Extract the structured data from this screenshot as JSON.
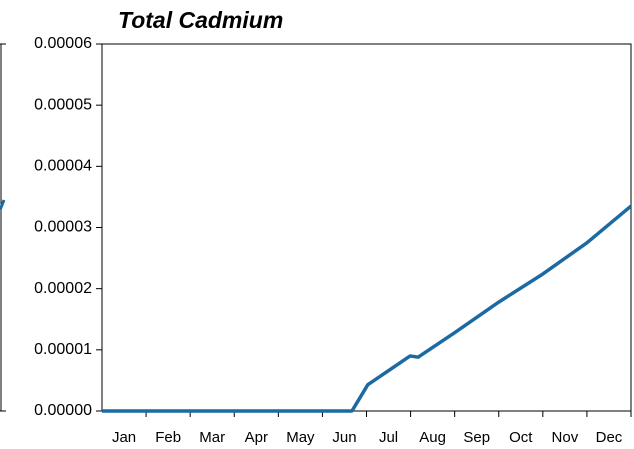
{
  "chart_data": {
    "type": "line",
    "title": "Total Cadmium",
    "categories": [
      "Jan",
      "Feb",
      "Mar",
      "Apr",
      "May",
      "Jun",
      "Jul",
      "Aug",
      "Sep",
      "Oct",
      "Nov",
      "Dec"
    ],
    "x": [
      0,
      5.67,
      6.03,
      6.99,
      7.17,
      8,
      9,
      10,
      11,
      12
    ],
    "series": [
      {
        "name": "Total Cadmium",
        "color": "#1b6aa3",
        "values": [
          0,
          0,
          4.3e-06,
          9e-06,
          8.8e-06,
          1.28e-05,
          1.78e-05,
          2.24e-05,
          2.75e-05,
          3.35e-05
        ]
      }
    ],
    "xlim": [
      0,
      12
    ],
    "ylim": [
      0,
      6e-05
    ],
    "yticks": [
      {
        "value": 0,
        "label": "0.00000"
      },
      1e-05,
      2e-05,
      3e-05,
      4e-05,
      5e-05,
      6e-05
    ]
  }
}
